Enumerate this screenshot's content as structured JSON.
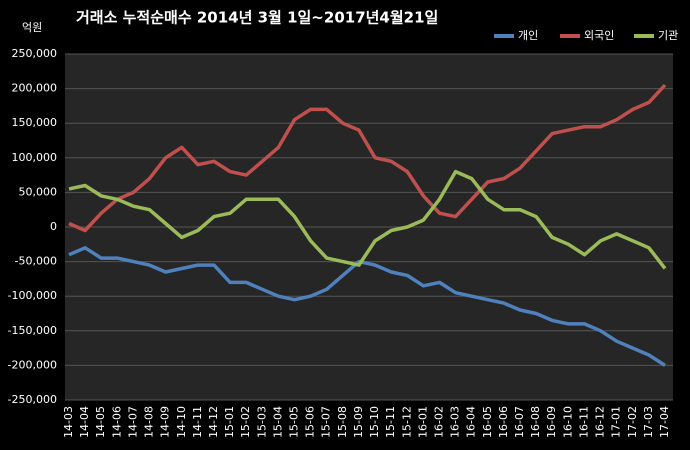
{
  "chart_data": {
    "type": "line",
    "title": "거래소 누적순매수 2014년 3월 1일~2017년4월21일",
    "y_label": "억원",
    "categories": [
      "14-03",
      "14-04",
      "14-05",
      "14-06",
      "14-07",
      "14-08",
      "14-09",
      "14-10",
      "14-11",
      "14-12",
      "15-01",
      "15-02",
      "15-03",
      "15-04",
      "15-05",
      "15-06",
      "15-07",
      "15-08",
      "15-09",
      "15-10",
      "15-11",
      "15-12",
      "16-01",
      "16-02",
      "16-03",
      "16-04",
      "16-05",
      "16-06",
      "16-07",
      "16-08",
      "16-09",
      "16-10",
      "16-11",
      "16-12",
      "17-01",
      "17-02",
      "17-03",
      "17-04"
    ],
    "series": [
      {
        "name": "개인",
        "color": "#4f81bd",
        "values": [
          -40000,
          -30000,
          -45000,
          -45000,
          -50000,
          -55000,
          -65000,
          -60000,
          -55000,
          -55000,
          -80000,
          -80000,
          -90000,
          -100000,
          -105000,
          -100000,
          -90000,
          -70000,
          -50000,
          -55000,
          -65000,
          -70000,
          -85000,
          -80000,
          -95000,
          -100000,
          -105000,
          -110000,
          -120000,
          -125000,
          -135000,
          -140000,
          -140000,
          -150000,
          -165000,
          -175000,
          -185000,
          -200000
        ]
      },
      {
        "name": "외국인",
        "color": "#c0504d",
        "values": [
          5000,
          -5000,
          20000,
          40000,
          50000,
          70000,
          100000,
          115000,
          90000,
          95000,
          80000,
          75000,
          95000,
          115000,
          155000,
          170000,
          170000,
          150000,
          140000,
          100000,
          95000,
          80000,
          45000,
          20000,
          15000,
          40000,
          65000,
          70000,
          85000,
          110000,
          135000,
          140000,
          145000,
          145000,
          155000,
          170000,
          180000,
          205000
        ]
      },
      {
        "name": "기관",
        "color": "#9bbb59",
        "values": [
          55000,
          60000,
          45000,
          40000,
          30000,
          25000,
          5000,
          -15000,
          -5000,
          15000,
          20000,
          40000,
          40000,
          40000,
          15000,
          -20000,
          -45000,
          -50000,
          -55000,
          -20000,
          -5000,
          0,
          10000,
          40000,
          80000,
          70000,
          40000,
          25000,
          25000,
          15000,
          -15000,
          -25000,
          -40000,
          -20000,
          -10000,
          -20000,
          -30000,
          -60000
        ]
      }
    ],
    "ylim": [
      -250000,
      250000
    ],
    "yticks": [
      {
        "value": 250000,
        "label": "250,000"
      },
      {
        "value": 200000,
        "label": "200,000"
      },
      {
        "value": 150000,
        "label": "150,000"
      },
      {
        "value": 100000,
        "label": "100,000"
      },
      {
        "value": 50000,
        "label": "50,000"
      },
      0,
      {
        "value": -50000,
        "label": "-50,000"
      },
      {
        "value": -100000,
        "label": "-100,000"
      },
      {
        "value": -150000,
        "label": "-150,000"
      },
      {
        "value": -200000,
        "label": "-200,000"
      },
      {
        "value": -250000,
        "label": "-250,000"
      }
    ],
    "grid": true,
    "legend": "top-right"
  }
}
